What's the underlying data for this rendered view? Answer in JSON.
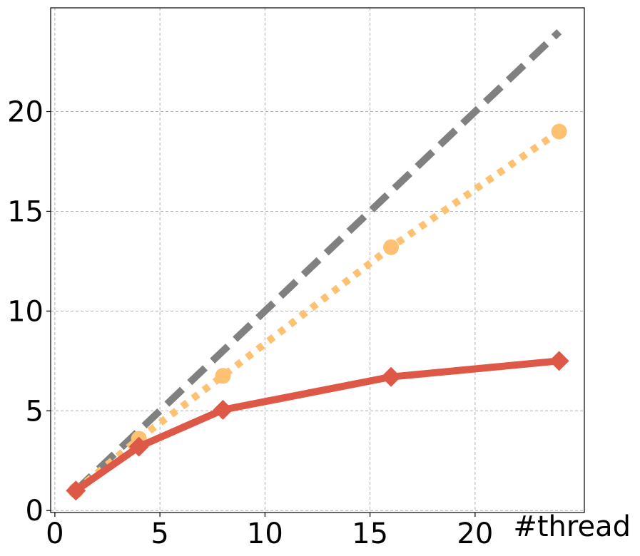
{
  "chart_data": {
    "type": "line",
    "xlabel": "#thread",
    "ylabel": "",
    "xlim": [
      -0.2,
      25.2
    ],
    "ylim": [
      -0.1,
      25.2
    ],
    "x_ticks": [
      0,
      5,
      10,
      15,
      20
    ],
    "y_ticks": [
      0,
      5,
      10,
      15,
      20
    ],
    "x_tick_labels": [
      "0",
      "5",
      "10",
      "15",
      "20"
    ],
    "y_tick_labels": [
      "0",
      "5",
      "10",
      "15",
      "20"
    ],
    "grid": true,
    "series": [
      {
        "x": [
          1,
          24
        ],
        "values": [
          1,
          24
        ],
        "color": "#808080",
        "style": "dashed",
        "marker": "none"
      },
      {
        "x": [
          1,
          4,
          8,
          16,
          24
        ],
        "values": [
          1,
          3.6,
          6.75,
          13.2,
          19.0
        ],
        "color": "#fdc171",
        "style": "dotted",
        "marker": "circle"
      },
      {
        "x": [
          1,
          4,
          8,
          16,
          24
        ],
        "values": [
          1,
          3.2,
          5.05,
          6.7,
          7.5
        ],
        "color": "#dd5847",
        "style": "solid",
        "marker": "diamond"
      }
    ]
  }
}
